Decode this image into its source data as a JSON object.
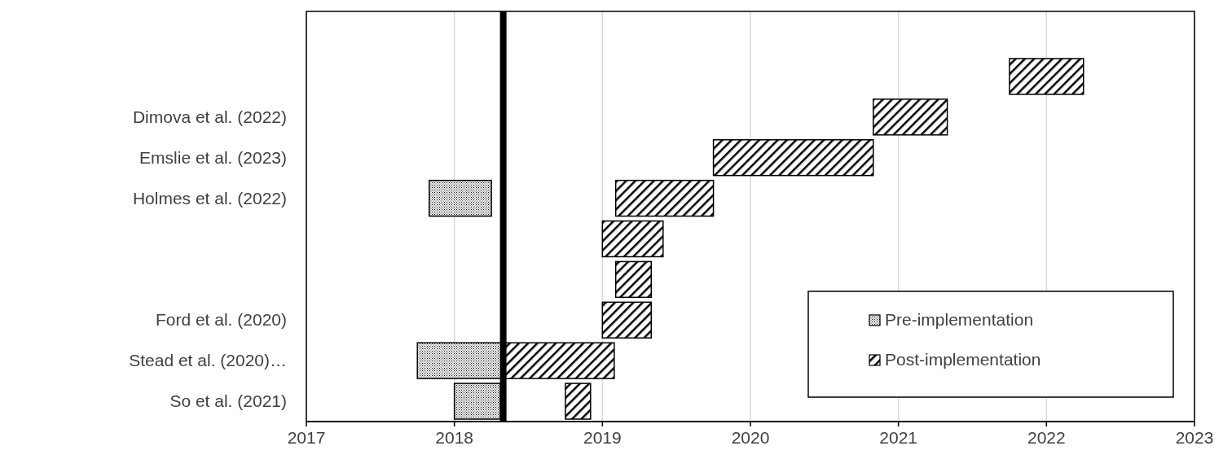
{
  "chart_data": {
    "type": "bar",
    "orientation": "horizontal",
    "categories": [
      null,
      "Dimova et al. (2022)",
      "Emslie et al. (2023)",
      "Holmes et al. (2022)",
      null,
      null,
      "Ford et al. (2020)",
      "Stead et al. (2020)…",
      "So et al. (2021)"
    ],
    "series": [
      {
        "name": "Pre-implementation",
        "color": "#000000",
        "base": [
          null,
          null,
          null,
          2017.83,
          null,
          null,
          null,
          2017.75,
          2018
        ],
        "values": [
          null,
          null,
          null,
          0.42,
          null,
          null,
          null,
          0.59,
          0.31
        ]
      },
      {
        "name": "Post-implementation",
        "color": "#000000",
        "base": [
          2021.75,
          2020.83,
          2019.75,
          2019.09,
          2019,
          2019.09,
          2019,
          2018.34,
          2018.75
        ],
        "values": [
          0.5,
          0.5,
          1.08,
          0.66,
          0.41,
          0.24,
          0.33,
          0.74,
          0.17
        ]
      }
    ],
    "xlim": [
      2017,
      2023
    ],
    "xticks": [
      2017,
      2018,
      2019,
      2020,
      2021,
      2022,
      2023
    ],
    "ref_lines": [
      {
        "axis": "x",
        "value": 2018.33,
        "color": "#000000"
      }
    ],
    "grid": "x",
    "legend": "bottom right"
  }
}
